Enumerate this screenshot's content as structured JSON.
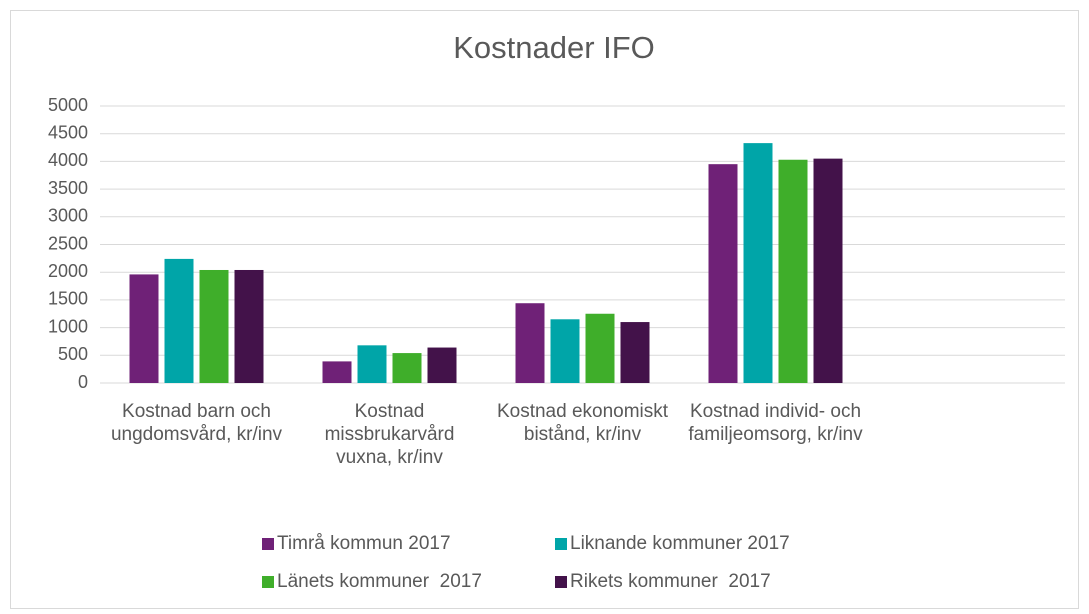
{
  "chart_data": {
    "type": "bar",
    "title": "Kostnader IFO",
    "categories": [
      "Kostnad barn och ungdomsvård, kr/inv",
      "Kostnad missbrukarvård vuxna, kr/inv",
      "Kostnad ekonomiskt bistånd, kr/inv",
      "Kostnad individ- och familjeomsorg, kr/inv",
      null
    ],
    "series": [
      {
        "name": "Timrå kommun 2017",
        "color": "#6f2177",
        "values": [
          1960,
          390,
          1440,
          3950,
          null
        ]
      },
      {
        "name": "Liknande kommuner 2017",
        "color": "#00a5a8",
        "values": [
          2240,
          680,
          1150,
          4330,
          null
        ]
      },
      {
        "name": "Länets kommuner  2017",
        "color": "#3fae2a",
        "values": [
          2040,
          540,
          1250,
          4030,
          null
        ]
      },
      {
        "name": "Rikets kommuner  2017",
        "color": "#43124a",
        "values": [
          2040,
          640,
          1100,
          4050,
          null
        ]
      }
    ],
    "ylim": [
      0,
      5000
    ],
    "yticks": [
      0,
      500,
      1000,
      1500,
      2000,
      2500,
      3000,
      3500,
      4000,
      4500,
      5000
    ],
    "grid": true,
    "legend": "bottom"
  }
}
